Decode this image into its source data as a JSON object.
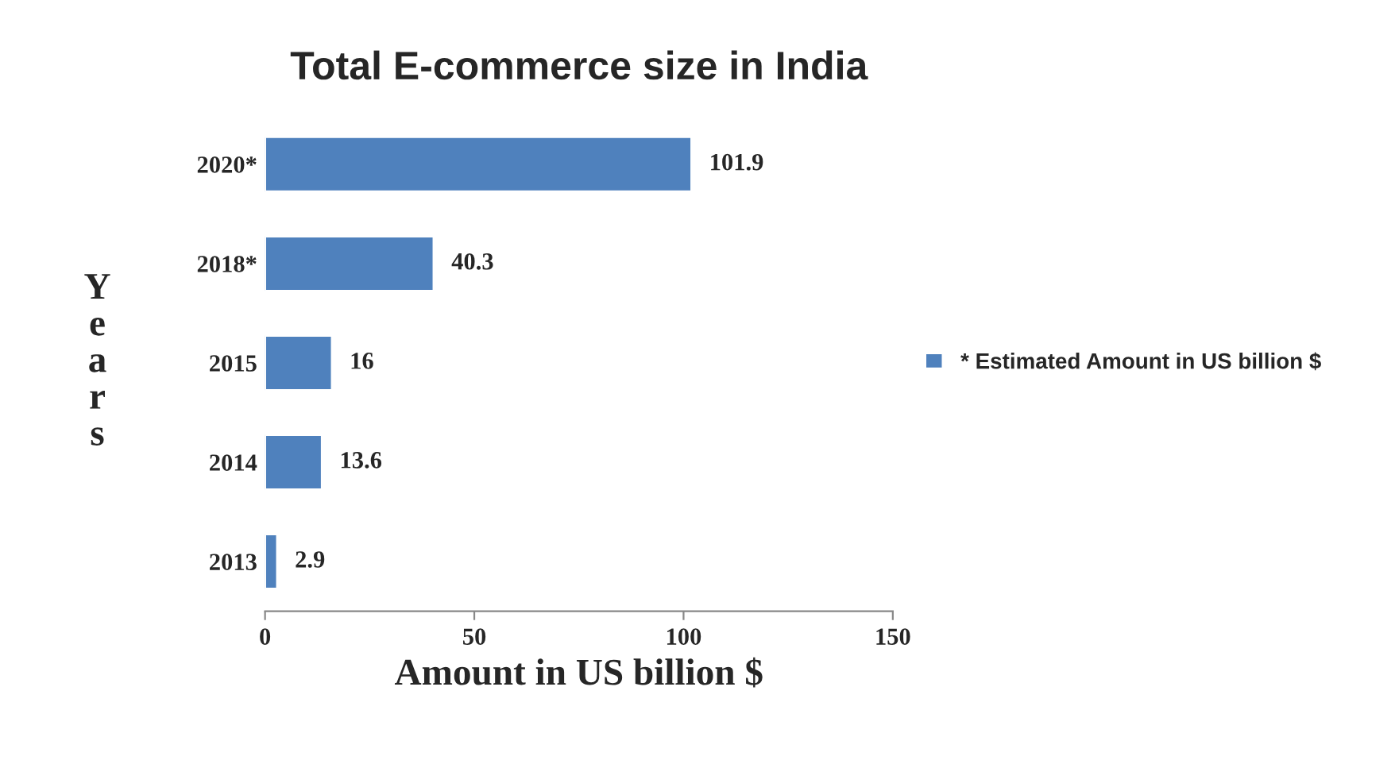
{
  "chart_data": {
    "type": "bar",
    "orientation": "horizontal",
    "title": "Total E-commerce size in India",
    "xlabel": "Amount in US billion $",
    "ylabel": "Years",
    "categories": [
      "2020*",
      "2018*",
      "2015",
      "2014",
      "2013"
    ],
    "series": [
      {
        "name": "* Estimated Amount in US billion $",
        "color": "#4f81bd",
        "values": [
          101.9,
          40.3,
          16,
          13.6,
          2.9
        ]
      }
    ],
    "xlim": [
      0,
      150
    ],
    "xticks": [
      0,
      50,
      100,
      150
    ],
    "data_labels": true,
    "legend": "right",
    "grid": false
  }
}
